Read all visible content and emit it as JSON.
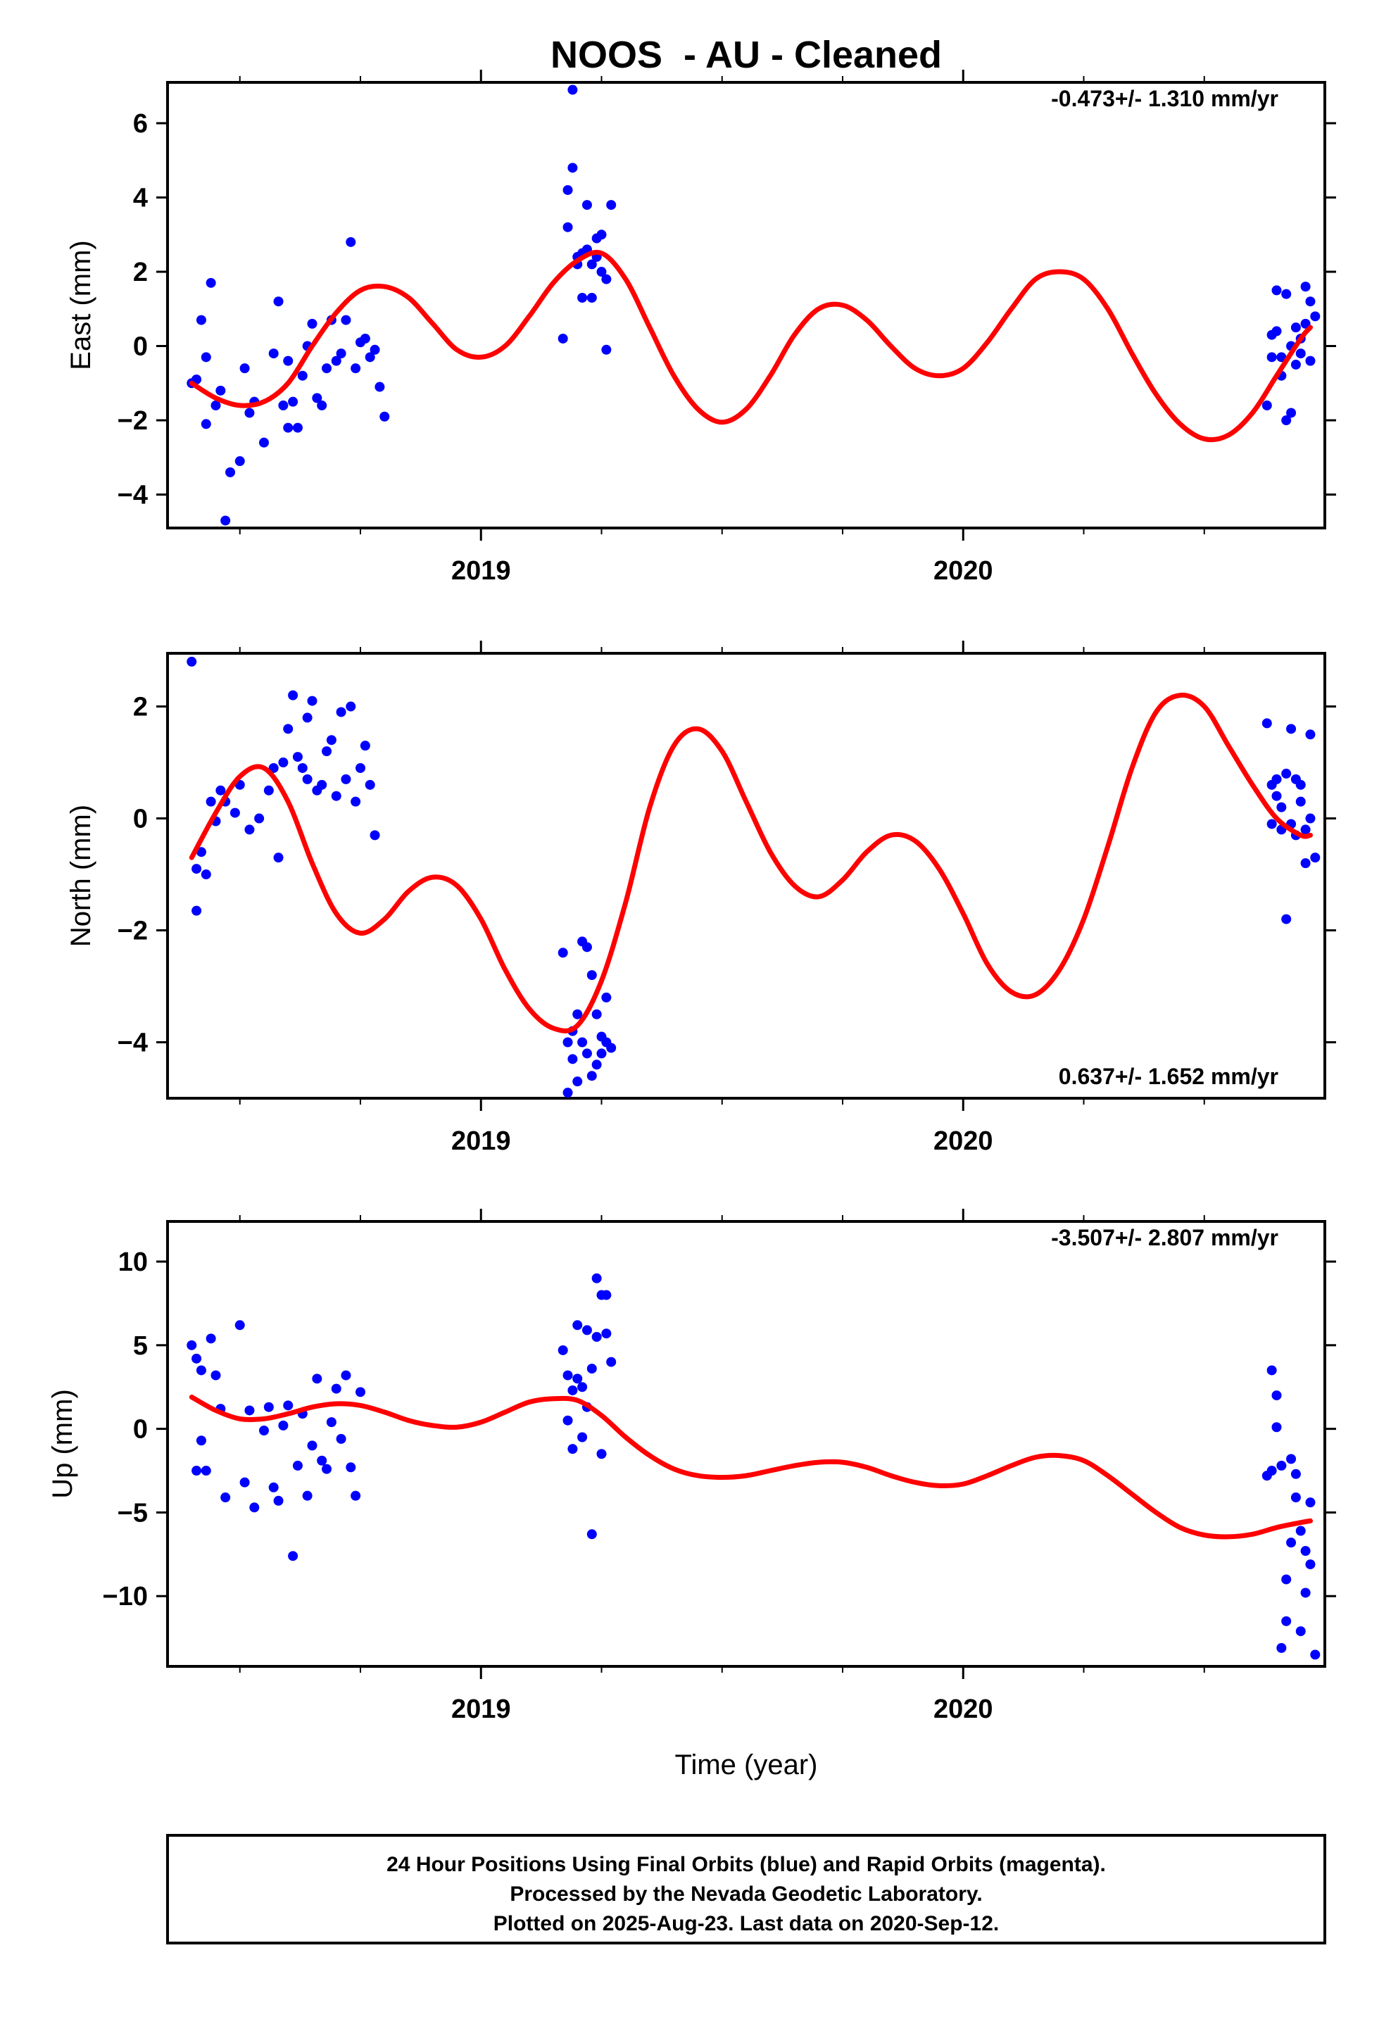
{
  "title": "NOOS  - AU - Cleaned",
  "xlabel": "Time (year)",
  "footer": {
    "line1": "24 Hour Positions Using Final Orbits (blue) and Rapid Orbits (magenta).",
    "line2": "Processed by the Nevada Geodetic Laboratory.",
    "line3": "Plotted on 2025-Aug-23. Last data on 2020-Sep-12."
  },
  "colors": {
    "points": "#0000ff",
    "fit": "#ff0000",
    "frame": "#000000"
  },
  "chart_data": [
    {
      "type": "scatter",
      "name": "east",
      "ylabel": "East (mm)",
      "rate": "-0.473+/- 1.310 mm/yr",
      "rate_position": "top-right",
      "xlim": [
        2018.35,
        2020.75
      ],
      "ylim": [
        -4.9,
        7.1
      ],
      "xticks": [
        2019,
        2020
      ],
      "xtick_labels": [
        "2019",
        "2020"
      ],
      "yticks": [
        -4,
        -2,
        0,
        2,
        4,
        6
      ],
      "ytick_labels": [
        "−4",
        "−2",
        "0",
        "2",
        "4",
        "6"
      ],
      "series": [
        {
          "kind": "points",
          "x": [
            2018.4,
            2018.41,
            2018.42,
            2018.43,
            2018.43,
            2018.44,
            2018.45,
            2018.46,
            2018.47,
            2018.48,
            2018.5,
            2018.51,
            2018.52,
            2018.53,
            2018.55,
            2018.57,
            2018.58,
            2018.59,
            2018.6,
            2018.6,
            2018.61,
            2018.62,
            2018.63,
            2018.64,
            2018.65,
            2018.66,
            2018.67,
            2018.68,
            2018.69,
            2018.7,
            2018.71,
            2018.72,
            2018.73,
            2018.74,
            2018.75,
            2018.76,
            2018.77,
            2018.78,
            2018.79,
            2018.8,
            2019.17,
            2019.18,
            2019.18,
            2019.19,
            2019.19,
            2019.2,
            2019.2,
            2019.21,
            2019.21,
            2019.22,
            2019.22,
            2019.23,
            2019.23,
            2019.24,
            2019.24,
            2019.25,
            2019.25,
            2019.26,
            2019.26,
            2019.27,
            2020.63,
            2020.64,
            2020.64,
            2020.65,
            2020.65,
            2020.66,
            2020.66,
            2020.67,
            2020.67,
            2020.68,
            2020.68,
            2020.69,
            2020.69,
            2020.7,
            2020.7,
            2020.71,
            2020.71,
            2020.72,
            2020.72,
            2020.73
          ],
          "y": [
            -1.0,
            -0.9,
            0.7,
            -2.1,
            -0.3,
            1.7,
            -1.6,
            -1.2,
            -4.7,
            -3.4,
            -3.1,
            -0.6,
            -1.8,
            -1.5,
            -2.6,
            -0.2,
            1.2,
            -1.6,
            -0.4,
            -2.2,
            -1.5,
            -2.2,
            -0.8,
            0.0,
            0.6,
            -1.4,
            -1.6,
            -0.6,
            0.7,
            -0.4,
            -0.2,
            0.7,
            2.8,
            -0.6,
            0.1,
            0.2,
            -0.3,
            -0.1,
            -1.1,
            -1.9,
            0.2,
            4.2,
            3.2,
            6.9,
            4.8,
            2.4,
            2.2,
            1.3,
            2.5,
            2.6,
            3.8,
            2.2,
            1.3,
            2.9,
            2.4,
            3.0,
            2.0,
            -0.1,
            1.8,
            3.8,
            -1.6,
            0.3,
            -0.3,
            1.5,
            0.4,
            -0.8,
            -0.3,
            1.4,
            -2.0,
            -1.8,
            0.0,
            -0.5,
            0.5,
            -0.2,
            0.2,
            0.6,
            1.6,
            1.2,
            -0.4,
            0.8
          ]
        },
        {
          "kind": "line",
          "x": [
            2018.4,
            2018.45,
            2018.5,
            2018.55,
            2018.6,
            2018.65,
            2018.7,
            2018.75,
            2018.8,
            2018.85,
            2018.9,
            2018.95,
            2019.0,
            2019.05,
            2019.1,
            2019.15,
            2019.2,
            2019.25,
            2019.3,
            2019.35,
            2019.4,
            2019.45,
            2019.5,
            2019.55,
            2019.6,
            2019.65,
            2019.7,
            2019.75,
            2019.8,
            2019.85,
            2019.9,
            2019.95,
            2020.0,
            2020.05,
            2020.1,
            2020.15,
            2020.2,
            2020.25,
            2020.3,
            2020.35,
            2020.4,
            2020.45,
            2020.5,
            2020.55,
            2020.6,
            2020.65,
            2020.7,
            2020.72
          ],
          "y": [
            -1.0,
            -1.4,
            -1.6,
            -1.5,
            -1.0,
            0.0,
            0.9,
            1.5,
            1.6,
            1.3,
            0.6,
            -0.1,
            -0.3,
            0.0,
            0.8,
            1.7,
            2.3,
            2.5,
            1.8,
            0.5,
            -0.8,
            -1.7,
            -2.05,
            -1.7,
            -0.8,
            0.3,
            1.0,
            1.1,
            0.7,
            0.0,
            -0.6,
            -0.8,
            -0.6,
            0.1,
            1.0,
            1.8,
            2.0,
            1.8,
            1.0,
            -0.2,
            -1.3,
            -2.1,
            -2.5,
            -2.4,
            -1.8,
            -0.8,
            0.2,
            0.5
          ]
        }
      ]
    },
    {
      "type": "scatter",
      "name": "north",
      "ylabel": "North (mm)",
      "rate": "0.637+/- 1.652 mm/yr",
      "rate_position": "bottom-right",
      "xlim": [
        2018.35,
        2020.75
      ],
      "ylim": [
        -5.0,
        2.95
      ],
      "xticks": [
        2019,
        2020
      ],
      "xtick_labels": [
        "2019",
        "2020"
      ],
      "yticks": [
        -4,
        -2,
        0,
        2
      ],
      "ytick_labels": [
        "−4",
        "−2",
        "0",
        "2"
      ],
      "series": [
        {
          "kind": "points",
          "x": [
            2018.4,
            2018.41,
            2018.41,
            2018.42,
            2018.43,
            2018.44,
            2018.45,
            2018.46,
            2018.47,
            2018.49,
            2018.5,
            2018.52,
            2018.54,
            2018.56,
            2018.57,
            2018.58,
            2018.59,
            2018.6,
            2018.61,
            2018.62,
            2018.63,
            2018.64,
            2018.64,
            2018.65,
            2018.66,
            2018.67,
            2018.68,
            2018.69,
            2018.7,
            2018.71,
            2018.72,
            2018.73,
            2018.74,
            2018.75,
            2018.76,
            2018.77,
            2018.78,
            2019.17,
            2019.18,
            2019.18,
            2019.19,
            2019.19,
            2019.2,
            2019.2,
            2019.21,
            2019.21,
            2019.22,
            2019.22,
            2019.23,
            2019.23,
            2019.24,
            2019.24,
            2019.25,
            2019.25,
            2019.26,
            2019.26,
            2019.27,
            2020.63,
            2020.64,
            2020.64,
            2020.65,
            2020.65,
            2020.66,
            2020.66,
            2020.67,
            2020.67,
            2020.68,
            2020.68,
            2020.69,
            2020.69,
            2020.7,
            2020.7,
            2020.71,
            2020.71,
            2020.72,
            2020.72,
            2020.73
          ],
          "y": [
            2.8,
            -1.65,
            -0.9,
            -0.6,
            -1.0,
            0.3,
            -0.05,
            0.5,
            0.3,
            0.1,
            0.6,
            -0.2,
            0.0,
            0.5,
            0.9,
            -0.7,
            1.0,
            1.6,
            2.2,
            1.1,
            0.9,
            0.7,
            1.8,
            2.1,
            0.5,
            0.6,
            1.2,
            1.4,
            0.4,
            1.9,
            0.7,
            2.0,
            0.3,
            0.9,
            1.3,
            0.6,
            -0.3,
            -2.4,
            -4.9,
            -4.0,
            -3.8,
            -4.3,
            -4.7,
            -3.5,
            -2.2,
            -4.0,
            -2.3,
            -4.2,
            -4.6,
            -2.8,
            -3.5,
            -4.4,
            -3.9,
            -4.2,
            -4.0,
            -3.2,
            -4.1,
            1.7,
            0.6,
            -0.1,
            0.7,
            0.4,
            -0.2,
            0.2,
            -1.8,
            0.8,
            -0.1,
            1.6,
            0.7,
            -0.3,
            0.3,
            0.6,
            -0.8,
            -0.2,
            1.5,
            0.0,
            -0.7
          ]
        },
        {
          "kind": "line",
          "x": [
            2018.4,
            2018.45,
            2018.5,
            2018.55,
            2018.6,
            2018.65,
            2018.7,
            2018.75,
            2018.8,
            2018.85,
            2018.9,
            2018.95,
            2019.0,
            2019.05,
            2019.1,
            2019.15,
            2019.2,
            2019.25,
            2019.3,
            2019.35,
            2019.4,
            2019.45,
            2019.5,
            2019.55,
            2019.6,
            2019.65,
            2019.7,
            2019.75,
            2019.8,
            2019.85,
            2019.9,
            2019.95,
            2020.0,
            2020.05,
            2020.1,
            2020.15,
            2020.2,
            2020.25,
            2020.3,
            2020.35,
            2020.4,
            2020.45,
            2020.5,
            2020.55,
            2020.6,
            2020.65,
            2020.7,
            2020.72
          ],
          "y": [
            -0.7,
            0.1,
            0.75,
            0.9,
            0.3,
            -0.8,
            -1.7,
            -2.05,
            -1.8,
            -1.3,
            -1.05,
            -1.2,
            -1.8,
            -2.7,
            -3.4,
            -3.75,
            -3.7,
            -2.9,
            -1.5,
            0.2,
            1.3,
            1.6,
            1.2,
            0.3,
            -0.6,
            -1.2,
            -1.4,
            -1.1,
            -0.6,
            -0.3,
            -0.4,
            -0.9,
            -1.7,
            -2.6,
            -3.1,
            -3.15,
            -2.7,
            -1.8,
            -0.5,
            0.9,
            1.9,
            2.2,
            2.0,
            1.3,
            0.6,
            0.0,
            -0.3,
            -0.3
          ]
        }
      ]
    },
    {
      "type": "scatter",
      "name": "up",
      "ylabel": "Up (mm)",
      "rate": "-3.507+/- 2.807 mm/yr",
      "rate_position": "top-right",
      "xlim": [
        2018.35,
        2020.75
      ],
      "ylim": [
        -14.2,
        12.4
      ],
      "xticks": [
        2019,
        2020
      ],
      "xtick_labels": [
        "2019",
        "2020"
      ],
      "yticks": [
        -10,
        -5,
        0,
        5,
        10
      ],
      "ytick_labels": [
        "−10",
        "−5",
        "0",
        "5",
        "10"
      ],
      "series": [
        {
          "kind": "points",
          "x": [
            2018.4,
            2018.41,
            2018.41,
            2018.42,
            2018.42,
            2018.43,
            2018.44,
            2018.45,
            2018.46,
            2018.47,
            2018.5,
            2018.51,
            2018.52,
            2018.53,
            2018.55,
            2018.56,
            2018.57,
            2018.58,
            2018.59,
            2018.6,
            2018.61,
            2018.62,
            2018.63,
            2018.64,
            2018.65,
            2018.66,
            2018.67,
            2018.68,
            2018.69,
            2018.7,
            2018.71,
            2018.72,
            2018.73,
            2018.74,
            2018.75,
            2019.17,
            2019.18,
            2019.18,
            2019.19,
            2019.19,
            2019.2,
            2019.2,
            2019.21,
            2019.21,
            2019.22,
            2019.22,
            2019.23,
            2019.23,
            2019.24,
            2019.24,
            2019.25,
            2019.25,
            2019.26,
            2019.26,
            2019.27,
            2020.63,
            2020.64,
            2020.64,
            2020.65,
            2020.65,
            2020.66,
            2020.66,
            2020.67,
            2020.67,
            2020.68,
            2020.68,
            2020.69,
            2020.69,
            2020.7,
            2020.7,
            2020.71,
            2020.71,
            2020.72,
            2020.72,
            2020.73
          ],
          "y": [
            5.0,
            4.2,
            -2.5,
            3.5,
            -0.7,
            -2.5,
            5.4,
            3.2,
            1.2,
            -4.1,
            6.2,
            -3.2,
            1.1,
            -4.7,
            -0.1,
            1.3,
            -3.5,
            -4.3,
            0.2,
            1.4,
            -7.6,
            -2.2,
            0.9,
            -4.0,
            -1.0,
            3.0,
            -1.9,
            -2.4,
            0.4,
            2.4,
            -0.6,
            3.2,
            -2.3,
            -4.0,
            2.2,
            4.7,
            0.5,
            3.2,
            -1.2,
            2.3,
            6.2,
            3.0,
            -0.5,
            2.5,
            1.3,
            5.9,
            -6.3,
            3.6,
            9.0,
            5.5,
            8.0,
            -1.5,
            5.7,
            8.0,
            4.0,
            -2.8,
            3.5,
            -2.5,
            2.0,
            0.1,
            -2.2,
            -13.1,
            -11.5,
            -9.0,
            -1.8,
            -6.8,
            -4.1,
            -2.7,
            -6.1,
            -12.1,
            -9.8,
            -7.3,
            -4.4,
            -8.1,
            -13.5
          ]
        },
        {
          "kind": "line",
          "x": [
            2018.4,
            2018.45,
            2018.5,
            2018.55,
            2018.6,
            2018.65,
            2018.7,
            2018.75,
            2018.8,
            2018.85,
            2018.9,
            2018.95,
            2019.0,
            2019.05,
            2019.1,
            2019.15,
            2019.2,
            2019.25,
            2019.3,
            2019.35,
            2019.4,
            2019.45,
            2019.5,
            2019.55,
            2019.6,
            2019.65,
            2019.7,
            2019.75,
            2019.8,
            2019.85,
            2019.9,
            2019.95,
            2020.0,
            2020.05,
            2020.1,
            2020.15,
            2020.2,
            2020.25,
            2020.3,
            2020.35,
            2020.4,
            2020.45,
            2020.5,
            2020.55,
            2020.6,
            2020.65,
            2020.7,
            2020.72
          ],
          "y": [
            1.9,
            1.1,
            0.6,
            0.6,
            0.9,
            1.3,
            1.5,
            1.4,
            1.0,
            0.5,
            0.2,
            0.1,
            0.4,
            1.0,
            1.6,
            1.8,
            1.7,
            0.8,
            -0.5,
            -1.6,
            -2.4,
            -2.8,
            -2.9,
            -2.8,
            -2.5,
            -2.2,
            -2.0,
            -2.0,
            -2.3,
            -2.8,
            -3.2,
            -3.4,
            -3.3,
            -2.8,
            -2.2,
            -1.7,
            -1.6,
            -1.9,
            -2.8,
            -3.9,
            -5.0,
            -5.9,
            -6.35,
            -6.45,
            -6.3,
            -5.9,
            -5.6,
            -5.5
          ]
        }
      ]
    }
  ]
}
